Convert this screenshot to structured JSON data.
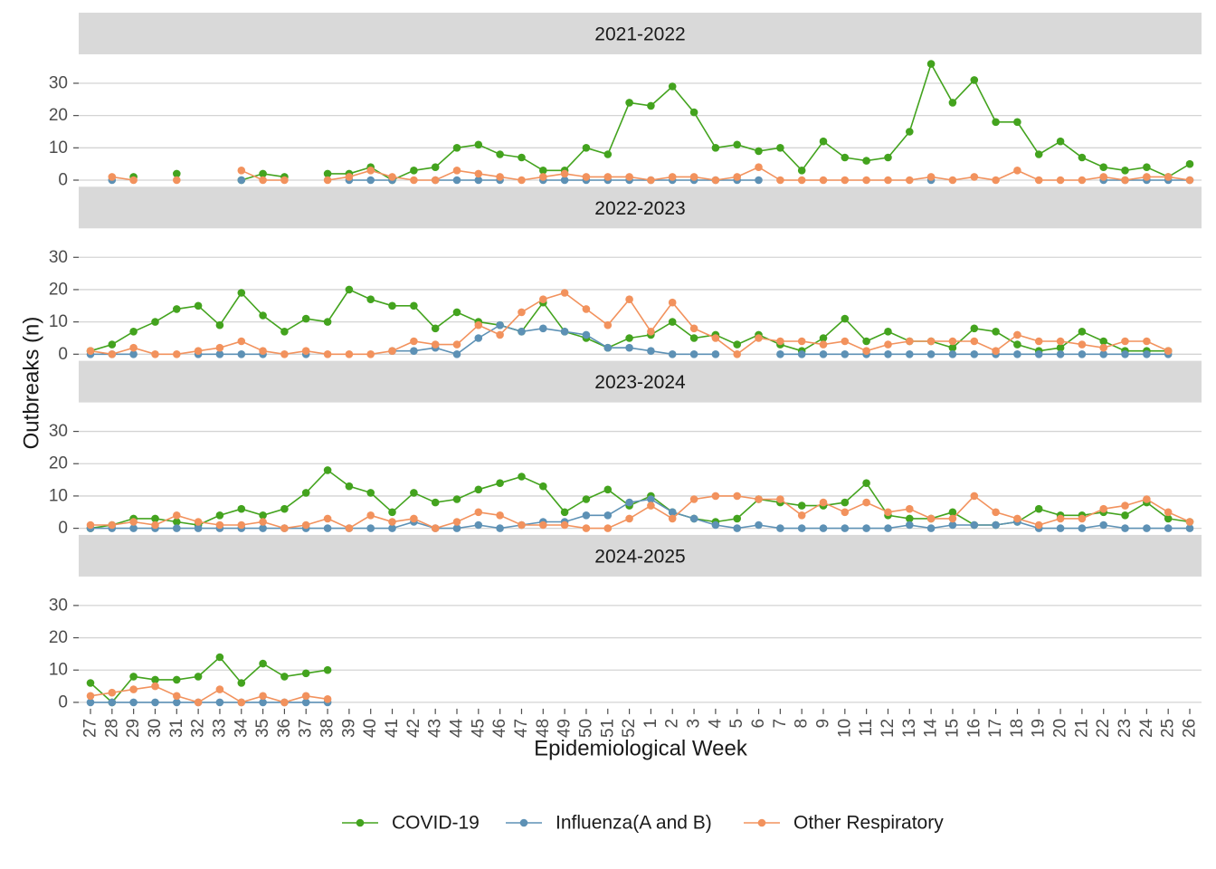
{
  "chart_data": {
    "type": "line",
    "xlabel": "Epidemiological Week",
    "ylabel": "Outbreaks (n)",
    "ylim": [
      0,
      37
    ],
    "yticks": [
      0,
      10,
      20,
      30
    ],
    "grid": true,
    "legend_position": "bottom",
    "weeks": [
      "27",
      "28",
      "29",
      "30",
      "31",
      "32",
      "33",
      "34",
      "35",
      "36",
      "37",
      "38",
      "39",
      "40",
      "41",
      "42",
      "43",
      "44",
      "45",
      "46",
      "47",
      "48",
      "49",
      "50",
      "51",
      "52",
      "1",
      "2",
      "3",
      "4",
      "5",
      "6",
      "7",
      "8",
      "9",
      "10",
      "11",
      "12",
      "13",
      "14",
      "15",
      "16",
      "17",
      "18",
      "19",
      "20",
      "21",
      "22",
      "23",
      "24",
      "25",
      "26"
    ],
    "series_meta": [
      {
        "name": "COVID-19",
        "color": "#43a31e"
      },
      {
        "name": "Influenza(A and B)",
        "color": "#5d91b5"
      },
      {
        "name": "Other Respiratory",
        "color": "#f2925d"
      }
    ],
    "facets": [
      {
        "label": "2021-2022",
        "series": [
          {
            "name": "COVID-19",
            "values": [
              null,
              null,
              1,
              null,
              2,
              null,
              null,
              0,
              2,
              1,
              null,
              2,
              2,
              4,
              0,
              3,
              4,
              10,
              11,
              8,
              7,
              3,
              3,
              10,
              8,
              24,
              23,
              29,
              21,
              10,
              11,
              9,
              10,
              3,
              12,
              7,
              6,
              7,
              15,
              36,
              24,
              31,
              18,
              18,
              8,
              12,
              7,
              4,
              3,
              4,
              1,
              5
            ]
          },
          {
            "name": "Influenza(A and B)",
            "values": [
              null,
              0,
              null,
              null,
              null,
              null,
              null,
              0,
              null,
              null,
              null,
              null,
              0,
              0,
              0,
              null,
              0,
              0,
              0,
              0,
              null,
              0,
              0,
              0,
              0,
              0,
              0,
              0,
              0,
              0,
              0,
              0,
              null,
              null,
              null,
              null,
              null,
              null,
              null,
              0,
              null,
              null,
              null,
              null,
              null,
              null,
              null,
              0,
              0,
              0,
              0,
              0
            ]
          },
          {
            "name": "Other Respiratory",
            "values": [
              null,
              1,
              0,
              null,
              0,
              null,
              null,
              3,
              0,
              0,
              null,
              0,
              1,
              3,
              1,
              0,
              0,
              3,
              2,
              1,
              0,
              1,
              2,
              1,
              1,
              1,
              0,
              1,
              1,
              0,
              1,
              4,
              0,
              0,
              0,
              0,
              0,
              0,
              0,
              1,
              0,
              1,
              0,
              3,
              0,
              0,
              0,
              1,
              0,
              1,
              1,
              0
            ]
          }
        ]
      },
      {
        "label": "2022-2023",
        "series": [
          {
            "name": "COVID-19",
            "values": [
              1,
              3,
              7,
              10,
              14,
              15,
              9,
              19,
              12,
              7,
              11,
              10,
              20,
              17,
              15,
              15,
              8,
              13,
              10,
              9,
              7,
              16,
              7,
              5,
              2,
              5,
              6,
              10,
              5,
              6,
              3,
              6,
              3,
              1,
              5,
              11,
              4,
              7,
              4,
              4,
              2,
              8,
              7,
              3,
              1,
              2,
              7,
              4,
              1,
              1,
              1,
              null
            ]
          },
          {
            "name": "Influenza(A and B)",
            "values": [
              0,
              0,
              0,
              null,
              null,
              0,
              0,
              0,
              0,
              null,
              0,
              null,
              null,
              null,
              1,
              1,
              2,
              0,
              5,
              9,
              7,
              8,
              7,
              6,
              2,
              2,
              1,
              0,
              0,
              0,
              null,
              null,
              0,
              0,
              0,
              0,
              0,
              0,
              0,
              0,
              0,
              0,
              0,
              0,
              0,
              0,
              0,
              0,
              0,
              0,
              0,
              null
            ]
          },
          {
            "name": "Other Respiratory",
            "values": [
              1,
              0,
              2,
              0,
              0,
              1,
              2,
              4,
              1,
              0,
              1,
              0,
              0,
              0,
              1,
              4,
              3,
              3,
              9,
              6,
              13,
              17,
              19,
              14,
              9,
              17,
              7,
              16,
              8,
              5,
              0,
              5,
              4,
              4,
              3,
              4,
              1,
              3,
              4,
              4,
              4,
              4,
              1,
              6,
              4,
              4,
              3,
              2,
              4,
              4,
              1,
              null
            ]
          }
        ]
      },
      {
        "label": "2023-2024",
        "series": [
          {
            "name": "COVID-19",
            "values": [
              0,
              1,
              3,
              3,
              2,
              1,
              4,
              6,
              4,
              6,
              11,
              18,
              13,
              11,
              5,
              11,
              8,
              9,
              12,
              14,
              16,
              13,
              5,
              9,
              12,
              7,
              10,
              5,
              3,
              2,
              3,
              9,
              8,
              7,
              7,
              8,
              14,
              4,
              3,
              3,
              5,
              1,
              1,
              2,
              6,
              4,
              4,
              5,
              4,
              8,
              3,
              2
            ]
          },
          {
            "name": "Influenza(A and B)",
            "values": [
              0,
              0,
              0,
              0,
              0,
              0,
              0,
              0,
              0,
              0,
              0,
              0,
              0,
              0,
              0,
              2,
              0,
              0,
              1,
              0,
              1,
              2,
              2,
              4,
              4,
              8,
              9,
              5,
              3,
              1,
              0,
              1,
              0,
              0,
              0,
              0,
              0,
              0,
              1,
              0,
              1,
              1,
              1,
              2,
              0,
              0,
              0,
              1,
              0,
              0,
              0,
              0
            ]
          },
          {
            "name": "Other Respiratory",
            "values": [
              1,
              1,
              2,
              1,
              4,
              2,
              1,
              1,
              2,
              0,
              1,
              3,
              0,
              4,
              2,
              3,
              0,
              2,
              5,
              4,
              1,
              1,
              1,
              0,
              0,
              3,
              7,
              3,
              9,
              10,
              10,
              9,
              9,
              4,
              8,
              5,
              8,
              5,
              6,
              3,
              3,
              10,
              5,
              3,
              1,
              3,
              3,
              6,
              7,
              9,
              5,
              2
            ]
          }
        ]
      },
      {
        "label": "2024-2025",
        "series": [
          {
            "name": "COVID-19",
            "values": [
              6,
              0,
              8,
              7,
              7,
              8,
              14,
              6,
              12,
              8,
              9,
              10,
              null,
              null,
              null,
              null,
              null,
              null,
              null,
              null,
              null,
              null,
              null,
              null,
              null,
              null,
              null,
              null,
              null,
              null,
              null,
              null,
              null,
              null,
              null,
              null,
              null,
              null,
              null,
              null,
              null,
              null,
              null,
              null,
              null,
              null,
              null,
              null,
              null,
              null,
              null,
              null
            ]
          },
          {
            "name": "Influenza(A and B)",
            "values": [
              0,
              0,
              0,
              0,
              0,
              0,
              0,
              0,
              0,
              0,
              0,
              0,
              null,
              null,
              null,
              null,
              null,
              null,
              null,
              null,
              null,
              null,
              null,
              null,
              null,
              null,
              null,
              null,
              null,
              null,
              null,
              null,
              null,
              null,
              null,
              null,
              null,
              null,
              null,
              null,
              null,
              null,
              null,
              null,
              null,
              null,
              null,
              null,
              null,
              null,
              null,
              null
            ]
          },
          {
            "name": "Other Respiratory",
            "values": [
              2,
              3,
              4,
              5,
              2,
              0,
              4,
              0,
              2,
              0,
              2,
              1,
              null,
              null,
              null,
              null,
              null,
              null,
              null,
              null,
              null,
              null,
              null,
              null,
              null,
              null,
              null,
              null,
              null,
              null,
              null,
              null,
              null,
              null,
              null,
              null,
              null,
              null,
              null,
              null,
              null,
              null,
              null,
              null,
              null,
              null,
              null,
              null,
              null,
              null,
              null,
              null
            ]
          }
        ]
      }
    ]
  }
}
